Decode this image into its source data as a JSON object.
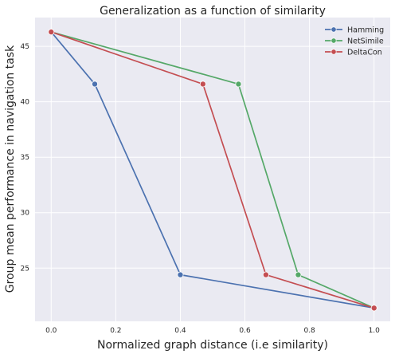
{
  "chart_data": {
    "type": "line",
    "title": "Generalization as a function of similarity",
    "xlabel": "Normalized graph distance (i.e similarity)",
    "ylabel": "Group mean performance in navigation task",
    "xlim": [
      -0.05,
      1.05
    ],
    "ylim": [
      20.2,
      47.6
    ],
    "xticks": [
      0.0,
      0.2,
      0.4,
      0.6,
      0.8,
      1.0
    ],
    "xtick_labels": [
      "0.0",
      "0.2",
      "0.4",
      "0.6",
      "0.8",
      "1.0"
    ],
    "yticks": [
      25,
      30,
      35,
      40,
      45
    ],
    "ytick_labels": [
      "25",
      "30",
      "35",
      "40",
      "45"
    ],
    "grid": true,
    "legend_position": "top-right",
    "series": [
      {
        "name": "Hamming",
        "color": "#4c72b0",
        "x": [
          0.0,
          0.135,
          0.4,
          1.0
        ],
        "y": [
          46.3,
          41.6,
          24.4,
          21.4
        ]
      },
      {
        "name": "NetSimile",
        "color": "#55a868",
        "x": [
          0.0,
          0.58,
          0.765,
          1.0
        ],
        "y": [
          46.3,
          41.6,
          24.4,
          21.4
        ]
      },
      {
        "name": "DeltaCon",
        "color": "#c44e52",
        "x": [
          0.0,
          0.47,
          0.665,
          1.0
        ],
        "y": [
          46.3,
          41.6,
          24.4,
          21.4
        ]
      }
    ]
  }
}
